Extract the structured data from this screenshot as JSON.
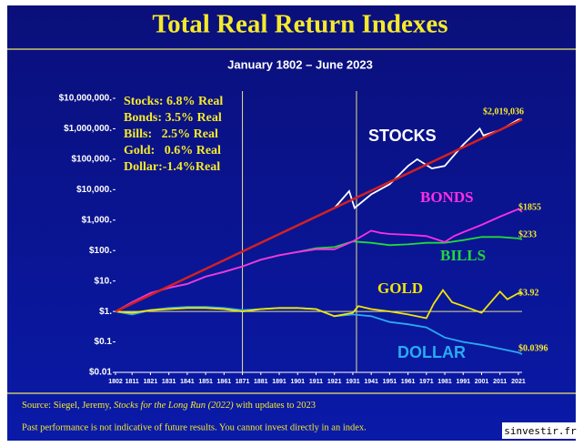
{
  "chart_data": {
    "type": "line",
    "title": "Total Real Return Indexes",
    "subtitle": "January 1802 – June 2023",
    "log_y": true,
    "xlim": [
      1802,
      2023
    ],
    "xticks": [
      1802,
      1811,
      1821,
      1831,
      1841,
      1851,
      1861,
      1871,
      1881,
      1891,
      1901,
      1911,
      1921,
      1931,
      1941,
      1951,
      1961,
      1971,
      1981,
      1991,
      2001,
      2011,
      2021
    ],
    "ylim": [
      0.01,
      10000000
    ],
    "yticks": [
      {
        "value": 0.01,
        "label": "$0.01"
      },
      {
        "value": 0.1,
        "label": "$0.1"
      },
      {
        "value": 1,
        "label": "$1."
      },
      {
        "value": 10,
        "label": "$10."
      },
      {
        "value": 100,
        "label": "$100."
      },
      {
        "value": 1000,
        "label": "$1,000."
      },
      {
        "value": 10000,
        "label": "$10,000."
      },
      {
        "value": 100000,
        "label": "$100,000."
      },
      {
        "value": 1000000,
        "label": "$1,000,000."
      },
      {
        "value": 10000000,
        "label": "$10,000,000."
      }
    ],
    "reference_x": [
      1871,
      1933
    ],
    "reference_y": 1,
    "trend_line": {
      "color": "#d42020",
      "x": [
        1802,
        2023
      ],
      "values": [
        1,
        2019036
      ]
    },
    "legend_box": [
      "Stocks: 6.8% Real",
      "Bonds: 3.5% Real",
      "Bills:   2.5% Real",
      "Gold:   0.6% Real",
      "Dollar:-1.4%Real"
    ],
    "series": [
      {
        "name": "STOCKS",
        "color": "#ffffff",
        "end_label": "$2,019,036",
        "x": [
          1802,
          1811,
          1821,
          1831,
          1841,
          1851,
          1861,
          1871,
          1881,
          1891,
          1901,
          1911,
          1921,
          1929,
          1932,
          1941,
          1951,
          1961,
          1966,
          1974,
          1981,
          1991,
          2000,
          2002,
          2008,
          2011,
          2021,
          2023
        ],
        "values": [
          1,
          1.8,
          3.5,
          6.7,
          13,
          25,
          48,
          93,
          180,
          350,
          670,
          1300,
          2500,
          9000,
          2500,
          7000,
          15000,
          60000,
          100000,
          50000,
          60000,
          300000,
          1000000,
          600000,
          800000,
          900000,
          2000000,
          2019036
        ]
      },
      {
        "name": "BONDS",
        "color": "#ff2ee6",
        "end_label": "$1855",
        "x": [
          1802,
          1811,
          1821,
          1831,
          1841,
          1851,
          1861,
          1871,
          1881,
          1891,
          1901,
          1911,
          1921,
          1931,
          1941,
          1946,
          1951,
          1961,
          1971,
          1981,
          1986,
          1991,
          2001,
          2011,
          2021,
          2023
        ],
        "values": [
          1,
          2,
          4,
          6,
          8,
          14,
          20,
          30,
          50,
          70,
          90,
          110,
          110,
          200,
          450,
          380,
          350,
          330,
          300,
          190,
          300,
          400,
          700,
          1300,
          2300,
          1855
        ]
      },
      {
        "name": "BILLS",
        "color": "#22d83a",
        "end_label": "$233",
        "x": [
          1802,
          1811,
          1821,
          1831,
          1841,
          1851,
          1861,
          1871,
          1881,
          1891,
          1901,
          1911,
          1921,
          1931,
          1941,
          1951,
          1961,
          1971,
          1981,
          1991,
          2001,
          2011,
          2021,
          2023
        ],
        "values": [
          1,
          2,
          4,
          6,
          8,
          14,
          20,
          30,
          50,
          70,
          90,
          120,
          130,
          200,
          180,
          150,
          160,
          180,
          180,
          220,
          280,
          280,
          250,
          233
        ]
      },
      {
        "name": "GOLD",
        "color": "#f2e600",
        "end_label": "$3.92",
        "x": [
          1802,
          1811,
          1821,
          1831,
          1841,
          1851,
          1861,
          1871,
          1881,
          1891,
          1901,
          1911,
          1921,
          1931,
          1934,
          1941,
          1951,
          1961,
          1971,
          1975,
          1980,
          1985,
          1991,
          2001,
          2011,
          2015,
          2021,
          2023
        ],
        "values": [
          1,
          0.9,
          1.1,
          1.2,
          1.3,
          1.3,
          1.2,
          1,
          1.2,
          1.3,
          1.3,
          1.2,
          0.7,
          0.9,
          1.5,
          1.2,
          1,
          0.8,
          0.6,
          1.8,
          5,
          2,
          1.5,
          0.9,
          4.5,
          2.5,
          4,
          3.92
        ]
      },
      {
        "name": "DOLLAR",
        "color": "#2aaaf0",
        "end_label": "$0.0396",
        "x": [
          1802,
          1811,
          1821,
          1831,
          1841,
          1851,
          1861,
          1871,
          1881,
          1891,
          1901,
          1911,
          1921,
          1931,
          1941,
          1951,
          1961,
          1971,
          1981,
          1991,
          2001,
          2011,
          2021,
          2023
        ],
        "values": [
          1,
          0.8,
          1.1,
          1.3,
          1.4,
          1.4,
          1.3,
          1.1,
          1.2,
          1.3,
          1.3,
          1.2,
          0.7,
          0.8,
          0.7,
          0.45,
          0.38,
          0.3,
          0.14,
          0.1,
          0.08,
          0.06,
          0.045,
          0.0396
        ]
      }
    ],
    "source": {
      "prefix": "Source: Siegel, Jeremy, ",
      "book": "Stocks for the Long Run (2022)",
      "suffix": " with updates to 2023"
    },
    "footnote": "Past performance is not indicative of future results. You cannot invest directly in an index.",
    "watermark": "sinvestir.fr"
  }
}
